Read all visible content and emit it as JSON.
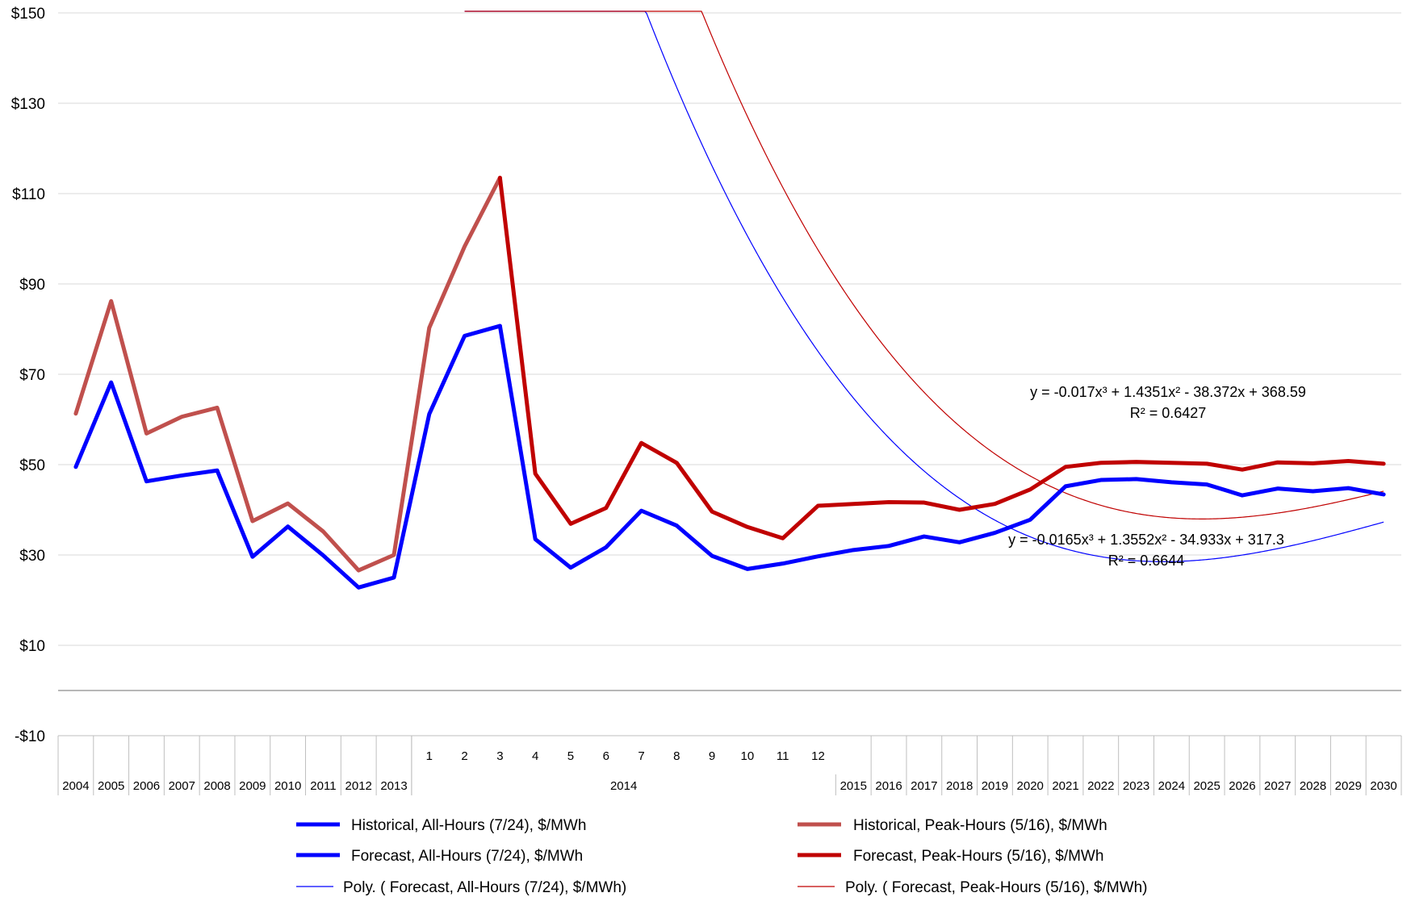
{
  "chart_data": {
    "type": "line",
    "ylim": [
      -10,
      150
    ],
    "yticks": [
      -10,
      10,
      30,
      50,
      70,
      90,
      110,
      130,
      150
    ],
    "ytick_labels": [
      "-$10",
      "$10",
      "$30",
      "$50",
      "$70",
      "$90",
      "$110",
      "$130",
      "$150"
    ],
    "grid": "horizontal",
    "legend_position": "bottom",
    "x_level1_labels": [
      "",
      "",
      "",
      "",
      "",
      "",
      "",
      "",
      "",
      "",
      "1",
      "2",
      "3",
      "4",
      "5",
      "6",
      "7",
      "8",
      "9",
      "10",
      "11",
      "12",
      "",
      "",
      "",
      "",
      "",
      "",
      "",
      "",
      "",
      "",
      "",
      "",
      "",
      "",
      "",
      ""
    ],
    "x_level2_labels": [
      "2004",
      "2005",
      "2006",
      "2007",
      "2008",
      "2009",
      "2010",
      "2011",
      "2012",
      "2013",
      "2014",
      "2015",
      "2016",
      "2017",
      "2018",
      "2019",
      "2020",
      "2021",
      "2022",
      "2023",
      "2024",
      "2025",
      "2026",
      "2027",
      "2028",
      "2029",
      "2030"
    ],
    "series": [
      {
        "name": "Historical, All-Hours (7/24), $/MWh",
        "color": "#0000ff",
        "style": "thick",
        "points": [
          [
            0,
            49.5
          ],
          [
            1,
            68.2
          ],
          [
            2,
            46.3
          ],
          [
            3,
            47.6
          ],
          [
            4,
            48.7
          ],
          [
            5,
            29.6
          ],
          [
            6,
            36.3
          ],
          [
            7,
            29.9
          ],
          [
            8,
            22.8
          ],
          [
            9,
            25.0
          ],
          [
            10,
            61.2
          ],
          [
            11,
            78.5
          ],
          [
            12,
            80.7
          ]
        ]
      },
      {
        "name": "Historical, Peak-Hours (5/16), $/MWh",
        "color": "#c0504d",
        "style": "thick",
        "points": [
          [
            0,
            61.3
          ],
          [
            1,
            86.2
          ],
          [
            2,
            56.9
          ],
          [
            3,
            60.6
          ],
          [
            4,
            62.6
          ],
          [
            5,
            37.5
          ],
          [
            6,
            41.4
          ],
          [
            7,
            35.2
          ],
          [
            8,
            26.6
          ],
          [
            9,
            30.0
          ],
          [
            10,
            80.3
          ],
          [
            11,
            98.3
          ],
          [
            12,
            113.5
          ]
        ]
      },
      {
        "name": "Forecast, All-Hours (7/24), $/MWh",
        "color": "#0000ff",
        "style": "thick",
        "points": [
          [
            12,
            80.7
          ],
          [
            13,
            33.5
          ],
          [
            14,
            27.2
          ],
          [
            15,
            31.7
          ],
          [
            16,
            39.8
          ],
          [
            17,
            36.5
          ],
          [
            18,
            29.8
          ],
          [
            19,
            26.9
          ],
          [
            20,
            28.1
          ],
          [
            21,
            29.7
          ],
          [
            22,
            31.1
          ],
          [
            23,
            32.0
          ],
          [
            24,
            34.1
          ],
          [
            25,
            32.8
          ],
          [
            26,
            34.9
          ],
          [
            27,
            37.8
          ],
          [
            28,
            45.2
          ],
          [
            29,
            46.6
          ],
          [
            30,
            46.8
          ],
          [
            31,
            46.1
          ],
          [
            32,
            45.6
          ],
          [
            33,
            43.2
          ],
          [
            34,
            44.7
          ],
          [
            35,
            44.1
          ],
          [
            36,
            44.8
          ],
          [
            37,
            43.4
          ]
        ]
      },
      {
        "name": "Forecast, Peak-Hours (5/16), $/MWh",
        "color": "#c00000",
        "style": "thick",
        "points": [
          [
            12,
            113.5
          ],
          [
            13,
            48.0
          ],
          [
            14,
            36.9
          ],
          [
            15,
            40.4
          ],
          [
            16,
            54.8
          ],
          [
            17,
            50.4
          ],
          [
            18,
            39.6
          ],
          [
            19,
            36.2
          ],
          [
            20,
            33.7
          ],
          [
            21,
            40.9
          ],
          [
            22,
            41.3
          ],
          [
            23,
            41.7
          ],
          [
            24,
            41.6
          ],
          [
            25,
            40.0
          ],
          [
            26,
            41.3
          ],
          [
            27,
            44.5
          ],
          [
            28,
            49.5
          ],
          [
            29,
            50.4
          ],
          [
            30,
            50.6
          ],
          [
            31,
            50.4
          ],
          [
            32,
            50.2
          ],
          [
            33,
            48.9
          ],
          [
            34,
            50.5
          ],
          [
            35,
            50.3
          ],
          [
            36,
            50.8
          ],
          [
            37,
            50.2
          ]
        ]
      },
      {
        "name": "Poly. (  Forecast, All-Hours (7/24), $/MWh)",
        "color": "#0000ff",
        "style": "thin",
        "poly": [
          -0.0165,
          1.3552,
          -34.933,
          317.3
        ],
        "poly_x_offset": 11,
        "poly_range": [
          0,
          26
        ]
      },
      {
        "name": "Poly. (  Forecast, Peak-Hours (5/16), $/MWh)",
        "color": "#c00000",
        "style": "thin",
        "poly": [
          -0.017,
          1.4351,
          -38.372,
          368.59
        ],
        "poly_x_offset": 11,
        "poly_range": [
          0,
          26
        ]
      }
    ],
    "annotations": [
      {
        "eq": "y = -0.017x³ + 1.4351x² - 38.372x + 368.59",
        "r2": "R² = 0.6427"
      },
      {
        "eq": "y = -0.0165x³ + 1.3552x² - 34.933x + 317.3",
        "r2": "R² = 0.6644"
      }
    ]
  }
}
